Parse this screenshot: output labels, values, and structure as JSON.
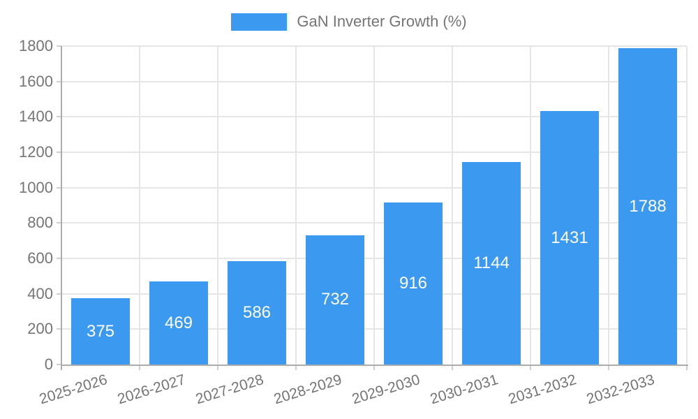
{
  "legend": {
    "label": "GaN Inverter Growth (%)"
  },
  "chart_data": {
    "type": "bar",
    "title": "",
    "series_name": "GaN Inverter Growth (%)",
    "categories": [
      "2025-2026",
      "2026-2027",
      "2027-2028",
      "2028-2029",
      "2029-2030",
      "2030-2031",
      "2031-2032",
      "2032-2033"
    ],
    "values": [
      375,
      469,
      586,
      732,
      916,
      1144,
      1431,
      1788
    ],
    "value_labels": [
      "375",
      "469",
      "586",
      "732",
      "916",
      "1144",
      "1431",
      "1788"
    ],
    "xlabel": "",
    "ylabel": "",
    "ylim": [
      0,
      1800
    ],
    "ytick_step": 200,
    "ytick_labels": [
      "0",
      "200",
      "400",
      "600",
      "800",
      "1000",
      "1200",
      "1400",
      "1600",
      "1800"
    ],
    "grid": true,
    "legend_position": "top-center",
    "colors": {
      "bar": "#3b99f0",
      "value_label": "#ffffff",
      "axis_text": "#757575",
      "gridline": "#e6e6e6",
      "axis_line": "#adadad",
      "tick_mark": "#cfcfcf",
      "background": "#ffffff"
    }
  }
}
